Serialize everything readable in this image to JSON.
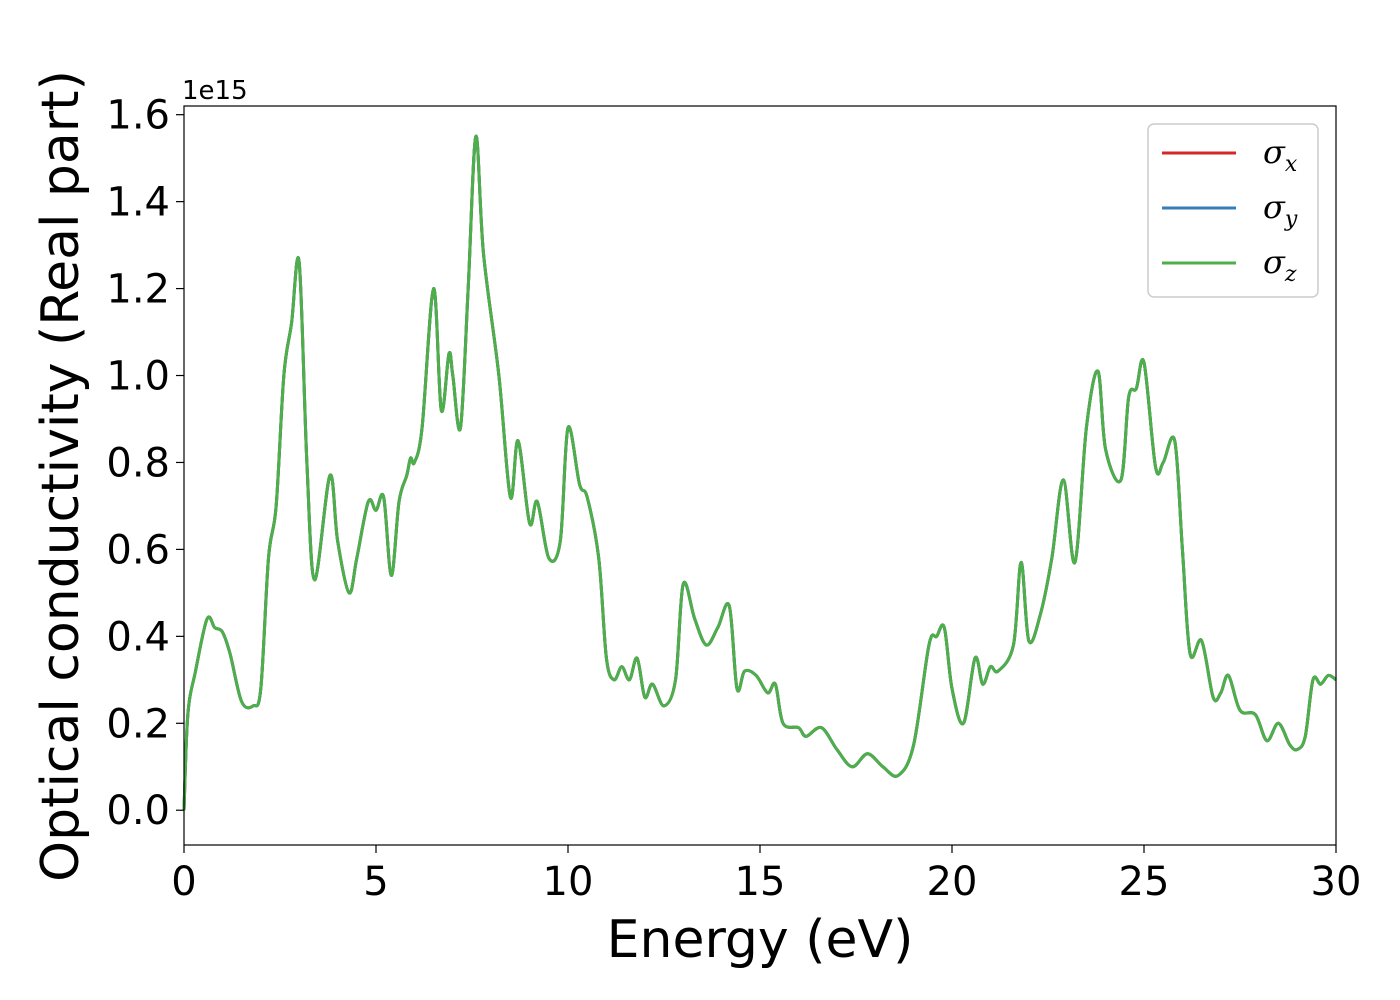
{
  "chart_data": {
    "type": "line",
    "title": "",
    "xlabel": "Energy (eV)",
    "ylabel": "Optical conductivity (Real part)",
    "y_offset_label": "1e15",
    "xlim": [
      0,
      30
    ],
    "ylim": [
      -0.08,
      1.62
    ],
    "xticks": [
      0,
      5,
      10,
      15,
      20,
      25,
      30
    ],
    "xtick_labels": [
      "0",
      "5",
      "10",
      "15",
      "20",
      "25",
      "30"
    ],
    "yticks": [
      0.0,
      0.2,
      0.4,
      0.6,
      0.8,
      1.0,
      1.2,
      1.4,
      1.6
    ],
    "ytick_labels": [
      "0.0",
      "0.2",
      "0.4",
      "0.6",
      "0.8",
      "1.0",
      "1.2",
      "1.4",
      "1.6"
    ],
    "grid": false,
    "legend_position": "top-right",
    "x": [
      0.0,
      0.1,
      0.3,
      0.6,
      0.8,
      1.0,
      1.2,
      1.5,
      1.8,
      2.0,
      2.2,
      2.4,
      2.6,
      2.8,
      3.0,
      3.2,
      3.4,
      3.8,
      4.0,
      4.3,
      4.5,
      4.8,
      5.0,
      5.2,
      5.4,
      5.6,
      5.8,
      5.9,
      6.0,
      6.2,
      6.5,
      6.7,
      6.9,
      7.0,
      7.2,
      7.4,
      7.6,
      7.8,
      8.2,
      8.5,
      8.7,
      9.0,
      9.2,
      9.5,
      9.8,
      10.0,
      10.3,
      10.5,
      10.8,
      11.0,
      11.2,
      11.4,
      11.6,
      11.8,
      12.0,
      12.2,
      12.5,
      12.8,
      13.0,
      13.3,
      13.6,
      13.9,
      14.2,
      14.4,
      14.6,
      14.9,
      15.2,
      15.4,
      15.6,
      16.0,
      16.2,
      16.6,
      17.0,
      17.4,
      17.8,
      18.2,
      18.6,
      19.0,
      19.4,
      19.6,
      19.8,
      20.0,
      20.3,
      20.6,
      20.8,
      21.0,
      21.2,
      21.6,
      21.8,
      22.0,
      22.3,
      22.6,
      22.9,
      23.2,
      23.5,
      23.8,
      24.0,
      24.4,
      24.6,
      24.8,
      25.0,
      25.3,
      25.5,
      25.8,
      26.0,
      26.2,
      26.5,
      26.8,
      27.0,
      27.2,
      27.5,
      27.9,
      28.2,
      28.5,
      28.8,
      29.0,
      29.2,
      29.4,
      29.6,
      29.8,
      30.0
    ],
    "series": [
      {
        "name": "σx",
        "color": "#d62728",
        "values": [
          0.0,
          0.22,
          0.32,
          0.44,
          0.42,
          0.41,
          0.36,
          0.25,
          0.24,
          0.28,
          0.58,
          0.7,
          1.0,
          1.12,
          1.26,
          0.8,
          0.53,
          0.77,
          0.62,
          0.5,
          0.58,
          0.71,
          0.69,
          0.72,
          0.54,
          0.71,
          0.77,
          0.81,
          0.8,
          0.88,
          1.2,
          0.92,
          1.05,
          1.0,
          0.88,
          1.2,
          1.55,
          1.28,
          1.0,
          0.72,
          0.85,
          0.66,
          0.71,
          0.58,
          0.62,
          0.88,
          0.75,
          0.72,
          0.58,
          0.35,
          0.3,
          0.33,
          0.3,
          0.35,
          0.26,
          0.29,
          0.24,
          0.3,
          0.52,
          0.44,
          0.38,
          0.42,
          0.47,
          0.28,
          0.32,
          0.31,
          0.27,
          0.29,
          0.2,
          0.19,
          0.17,
          0.19,
          0.14,
          0.1,
          0.13,
          0.1,
          0.08,
          0.15,
          0.38,
          0.4,
          0.42,
          0.28,
          0.2,
          0.35,
          0.29,
          0.33,
          0.32,
          0.38,
          0.57,
          0.39,
          0.45,
          0.58,
          0.76,
          0.57,
          0.88,
          1.01,
          0.83,
          0.76,
          0.95,
          0.97,
          1.03,
          0.79,
          0.8,
          0.85,
          0.6,
          0.36,
          0.39,
          0.26,
          0.27,
          0.31,
          0.23,
          0.22,
          0.16,
          0.2,
          0.15,
          0.14,
          0.17,
          0.3,
          0.29,
          0.31,
          0.3
        ]
      },
      {
        "name": "σy",
        "color": "#377eb8",
        "values": [
          0.0,
          0.22,
          0.32,
          0.44,
          0.42,
          0.41,
          0.36,
          0.25,
          0.24,
          0.28,
          0.58,
          0.7,
          1.0,
          1.12,
          1.26,
          0.8,
          0.53,
          0.77,
          0.62,
          0.5,
          0.58,
          0.71,
          0.69,
          0.72,
          0.54,
          0.71,
          0.77,
          0.81,
          0.8,
          0.88,
          1.2,
          0.92,
          1.05,
          1.0,
          0.88,
          1.2,
          1.55,
          1.28,
          1.0,
          0.72,
          0.85,
          0.66,
          0.71,
          0.58,
          0.62,
          0.88,
          0.75,
          0.72,
          0.58,
          0.35,
          0.3,
          0.33,
          0.3,
          0.35,
          0.26,
          0.29,
          0.24,
          0.3,
          0.52,
          0.44,
          0.38,
          0.42,
          0.47,
          0.28,
          0.32,
          0.31,
          0.27,
          0.29,
          0.2,
          0.19,
          0.17,
          0.19,
          0.14,
          0.1,
          0.13,
          0.1,
          0.08,
          0.15,
          0.38,
          0.4,
          0.42,
          0.28,
          0.2,
          0.35,
          0.29,
          0.33,
          0.32,
          0.38,
          0.57,
          0.39,
          0.45,
          0.58,
          0.76,
          0.57,
          0.88,
          1.01,
          0.83,
          0.76,
          0.95,
          0.97,
          1.03,
          0.79,
          0.8,
          0.85,
          0.6,
          0.36,
          0.39,
          0.26,
          0.27,
          0.31,
          0.23,
          0.22,
          0.16,
          0.2,
          0.15,
          0.14,
          0.17,
          0.3,
          0.29,
          0.31,
          0.3
        ]
      },
      {
        "name": "σz",
        "color": "#4daf4a",
        "values": [
          0.0,
          0.22,
          0.32,
          0.44,
          0.42,
          0.41,
          0.36,
          0.25,
          0.24,
          0.28,
          0.58,
          0.7,
          1.0,
          1.12,
          1.26,
          0.8,
          0.53,
          0.77,
          0.62,
          0.5,
          0.58,
          0.71,
          0.69,
          0.72,
          0.54,
          0.71,
          0.77,
          0.81,
          0.8,
          0.88,
          1.2,
          0.92,
          1.05,
          1.0,
          0.88,
          1.2,
          1.55,
          1.28,
          1.0,
          0.72,
          0.85,
          0.66,
          0.71,
          0.58,
          0.62,
          0.88,
          0.75,
          0.72,
          0.58,
          0.35,
          0.3,
          0.33,
          0.3,
          0.35,
          0.26,
          0.29,
          0.24,
          0.3,
          0.52,
          0.44,
          0.38,
          0.42,
          0.47,
          0.28,
          0.32,
          0.31,
          0.27,
          0.29,
          0.2,
          0.19,
          0.17,
          0.19,
          0.14,
          0.1,
          0.13,
          0.1,
          0.08,
          0.15,
          0.38,
          0.4,
          0.42,
          0.28,
          0.2,
          0.35,
          0.29,
          0.33,
          0.32,
          0.38,
          0.57,
          0.39,
          0.45,
          0.58,
          0.76,
          0.57,
          0.88,
          1.01,
          0.83,
          0.76,
          0.95,
          0.97,
          1.03,
          0.79,
          0.8,
          0.85,
          0.6,
          0.36,
          0.39,
          0.26,
          0.27,
          0.31,
          0.23,
          0.22,
          0.16,
          0.2,
          0.15,
          0.14,
          0.17,
          0.3,
          0.29,
          0.31,
          0.3
        ]
      }
    ],
    "legend": [
      {
        "symbol": "σ",
        "sub": "x",
        "color": "#d62728"
      },
      {
        "symbol": "σ",
        "sub": "y",
        "color": "#377eb8"
      },
      {
        "symbol": "σ",
        "sub": "z",
        "color": "#4daf4a"
      }
    ]
  }
}
